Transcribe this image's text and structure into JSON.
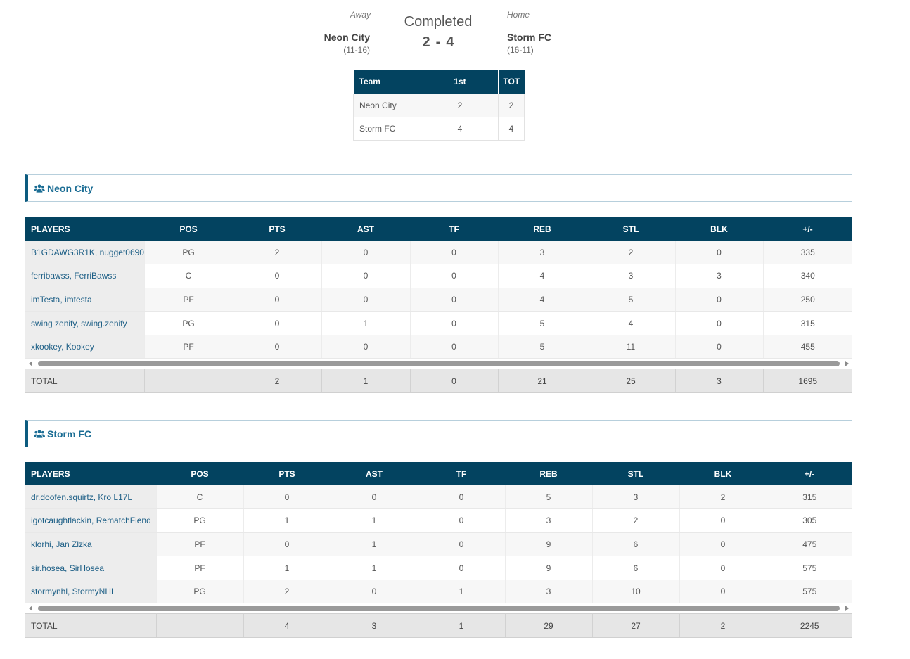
{
  "header": {
    "away_label": "Away",
    "home_label": "Home",
    "status": "Completed",
    "away_team": "Neon City",
    "away_record": "(11-16)",
    "home_team": "Storm FC",
    "home_record": "(16-11)",
    "away_score": "2",
    "score_sep": "-",
    "home_score": "4"
  },
  "linescore": {
    "headers": [
      "Team",
      "1st",
      "",
      "TOT"
    ],
    "rows": [
      [
        "Neon City",
        "2",
        "",
        "2"
      ],
      [
        "Storm FC",
        "4",
        "",
        "4"
      ]
    ]
  },
  "teams": [
    {
      "name": "Neon City",
      "columns": [
        "PLAYERS",
        "POS",
        "PTS",
        "AST",
        "TF",
        "REB",
        "STL",
        "BLK",
        "+/-"
      ],
      "players": [
        [
          "B1GDAWG3R1K, nugget0690",
          "PG",
          "2",
          "0",
          "0",
          "3",
          "2",
          "0",
          "335"
        ],
        [
          "ferribawss, FerriBawss",
          "C",
          "0",
          "0",
          "0",
          "4",
          "3",
          "3",
          "340"
        ],
        [
          "imTesta, imtesta",
          "PF",
          "0",
          "0",
          "0",
          "4",
          "5",
          "0",
          "250"
        ],
        [
          "swing zenify, swing.zenify",
          "PG",
          "0",
          "1",
          "0",
          "5",
          "4",
          "0",
          "315"
        ],
        [
          "xkookey, Kookey",
          "PF",
          "0",
          "0",
          "0",
          "5",
          "11",
          "0",
          "455"
        ]
      ],
      "totals": [
        "TOTAL",
        "",
        "2",
        "1",
        "0",
        "21",
        "25",
        "3",
        "1695"
      ]
    },
    {
      "name": "Storm FC",
      "columns": [
        "PLAYERS",
        "POS",
        "PTS",
        "AST",
        "TF",
        "REB",
        "STL",
        "BLK",
        "+/-"
      ],
      "players": [
        [
          "dr.doofen.squirtz, Kro L17L",
          "C",
          "0",
          "0",
          "0",
          "5",
          "3",
          "2",
          "315"
        ],
        [
          "igotcaughtlackin, RematchFiend",
          "PG",
          "1",
          "1",
          "0",
          "3",
          "2",
          "0",
          "305"
        ],
        [
          "klorhi, Jan Zlzka",
          "PF",
          "0",
          "1",
          "0",
          "9",
          "6",
          "0",
          "475"
        ],
        [
          "sir.hosea, SirHosea",
          "PF",
          "1",
          "1",
          "0",
          "9",
          "6",
          "0",
          "575"
        ],
        [
          "stormynhl, StormyNHL",
          "PG",
          "2",
          "0",
          "1",
          "3",
          "10",
          "0",
          "575"
        ]
      ],
      "totals": [
        "TOTAL",
        "",
        "4",
        "3",
        "1",
        "29",
        "27",
        "2",
        "2245"
      ]
    }
  ],
  "icons": {
    "team_icon": "users-icon"
  },
  "colors": {
    "header_bg": "#034360",
    "team_name": "#1b6d94",
    "player_link": "#1d5f86"
  }
}
